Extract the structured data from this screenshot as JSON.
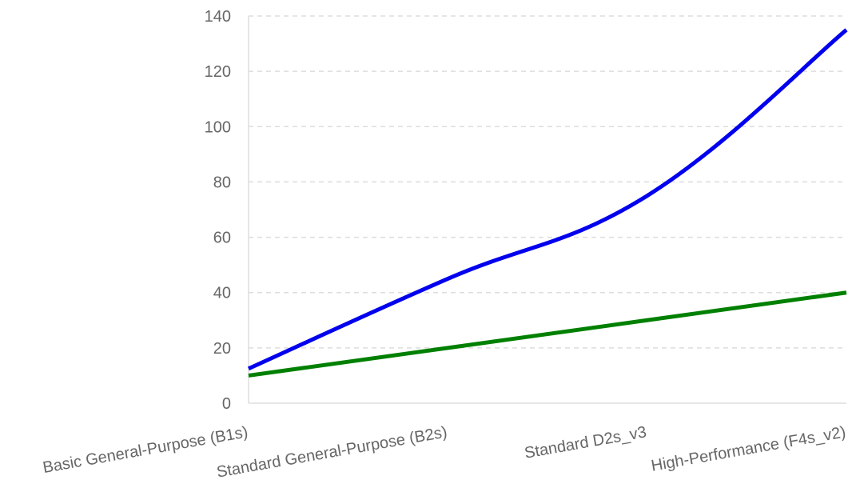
{
  "chart_data": {
    "type": "line",
    "categories": [
      "Basic General-Purpose (B1s)",
      "Standard General-Purpose (B2s)",
      "Standard D2s_v3",
      "High-Performance (F4s_v2)"
    ],
    "series": [
      {
        "color": "#0000ee",
        "values": [
          12.5,
          45,
          75,
          135
        ]
      },
      {
        "color": "#008000",
        "values": [
          10,
          20,
          30,
          40
        ]
      }
    ],
    "ylim": [
      0,
      140
    ],
    "yticks": [
      0,
      20,
      40,
      60,
      80,
      100,
      120,
      140
    ],
    "title": "",
    "xlabel": "",
    "ylabel": "",
    "grid": "horizontal dashed",
    "legend": "none"
  }
}
